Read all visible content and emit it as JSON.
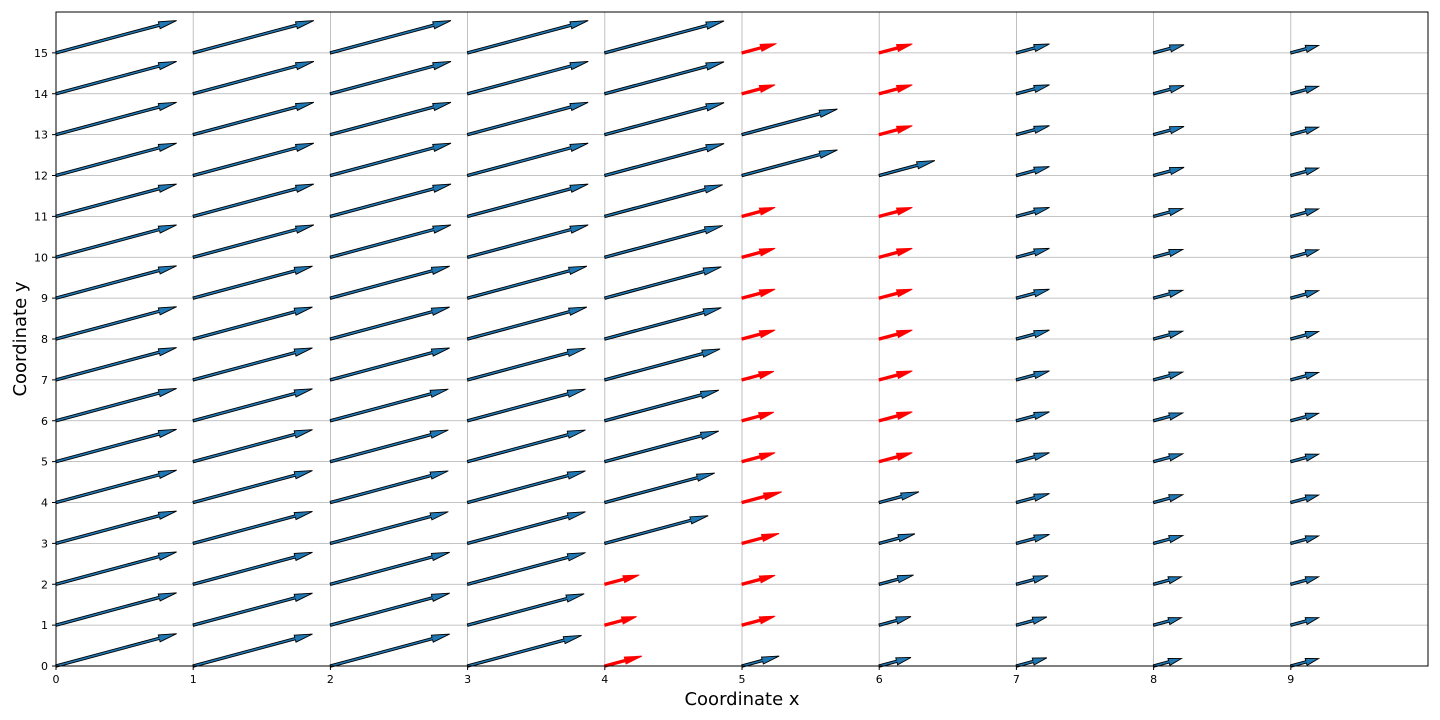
{
  "chart_data": {
    "type": "quiver",
    "title": "",
    "xlabel": "Coordinate x",
    "ylabel": "Coordinate y",
    "xlim": [
      0,
      10
    ],
    "ylim": [
      0,
      16
    ],
    "xticks": [
      0,
      1,
      2,
      3,
      4,
      5,
      6,
      7,
      8,
      9
    ],
    "yticks": [
      0,
      1,
      2,
      3,
      4,
      5,
      6,
      7,
      8,
      9,
      10,
      11,
      12,
      13,
      14,
      15
    ],
    "grid": true,
    "angle_deg": 15,
    "columns": [
      {
        "x": 0,
        "lengths": [
          0.91,
          0.91,
          0.91,
          0.91,
          0.91,
          0.91,
          0.91,
          0.91,
          0.91,
          0.91,
          0.91,
          0.91,
          0.91,
          0.91,
          0.91,
          0.91
        ],
        "colors": [
          "dark",
          "dark",
          "dark",
          "dark",
          "dark",
          "dark",
          "dark",
          "dark",
          "dark",
          "dark",
          "dark",
          "dark",
          "dark",
          "dark",
          "dark",
          "dark"
        ]
      },
      {
        "x": 1,
        "lengths": [
          0.9,
          0.9,
          0.9,
          0.9,
          0.9,
          0.9,
          0.9,
          0.9,
          0.9,
          0.9,
          0.91,
          0.91,
          0.91,
          0.91,
          0.91,
          0.91
        ],
        "colors": [
          "dark",
          "dark",
          "dark",
          "dark",
          "dark",
          "dark",
          "dark",
          "dark",
          "dark",
          "dark",
          "dark",
          "dark",
          "dark",
          "dark",
          "dark",
          "dark"
        ]
      },
      {
        "x": 2,
        "lengths": [
          0.9,
          0.9,
          0.9,
          0.89,
          0.89,
          0.89,
          0.89,
          0.9,
          0.9,
          0.9,
          0.91,
          0.91,
          0.91,
          0.91,
          0.91,
          0.91
        ],
        "colors": [
          "dark",
          "dark",
          "dark",
          "dark",
          "dark",
          "dark",
          "dark",
          "dark",
          "dark",
          "dark",
          "dark",
          "dark",
          "dark",
          "dark",
          "dark",
          "dark"
        ]
      },
      {
        "x": 3,
        "lengths": [
          0.86,
          0.88,
          0.89,
          0.89,
          0.89,
          0.89,
          0.89,
          0.89,
          0.9,
          0.9,
          0.91,
          0.91,
          0.91,
          0.91,
          0.91,
          0.91
        ],
        "colors": [
          "dark",
          "dark",
          "dark",
          "dark",
          "dark",
          "dark",
          "dark",
          "dark",
          "dark",
          "dark",
          "dark",
          "dark",
          "dark",
          "dark",
          "dark",
          "dark"
        ]
      },
      {
        "x": 4,
        "lengths": [
          0.28,
          0.24,
          0.26,
          0.78,
          0.83,
          0.86,
          0.86,
          0.87,
          0.88,
          0.88,
          0.89,
          0.89,
          0.9,
          0.9,
          0.9,
          0.9
        ],
        "colors": [
          "red",
          "red",
          "red",
          "dark",
          "dark",
          "dark",
          "dark",
          "dark",
          "dark",
          "dark",
          "dark",
          "dark",
          "dark",
          "dark",
          "dark",
          "dark"
        ]
      },
      {
        "x": 5,
        "lengths": [
          0.28,
          0.25,
          0.25,
          0.28,
          0.3,
          0.25,
          0.24,
          0.24,
          0.25,
          0.25,
          0.25,
          0.25,
          0.72,
          0.72,
          0.25,
          0.26
        ],
        "colors": [
          "dark",
          "red",
          "red",
          "red",
          "red",
          "red",
          "red",
          "red",
          "red",
          "red",
          "red",
          "red",
          "dark",
          "dark",
          "red",
          "red"
        ]
      },
      {
        "x": 6,
        "lengths": [
          0.24,
          0.24,
          0.26,
          0.27,
          0.3,
          0.25,
          0.25,
          0.25,
          0.25,
          0.25,
          0.25,
          0.25,
          0.42,
          0.25,
          0.25,
          0.25
        ],
        "colors": [
          "dark",
          "dark",
          "dark",
          "dark",
          "dark",
          "red",
          "red",
          "red",
          "red",
          "red",
          "red",
          "red",
          "dark",
          "red",
          "red",
          "red"
        ]
      },
      {
        "x": 7,
        "lengths": [
          0.23,
          0.23,
          0.24,
          0.25,
          0.25,
          0.25,
          0.25,
          0.25,
          0.25,
          0.25,
          0.25,
          0.25,
          0.25,
          0.25,
          0.25,
          0.25
        ],
        "colors": [
          "dark",
          "dark",
          "dark",
          "dark",
          "dark",
          "dark",
          "dark",
          "dark",
          "dark",
          "dark",
          "dark",
          "dark",
          "dark",
          "dark",
          "dark",
          "dark"
        ]
      },
      {
        "x": 8,
        "lengths": [
          0.21,
          0.21,
          0.21,
          0.22,
          0.22,
          0.22,
          0.22,
          0.22,
          0.22,
          0.22,
          0.22,
          0.22,
          0.23,
          0.23,
          0.23,
          0.23
        ],
        "colors": [
          "dark",
          "dark",
          "dark",
          "dark",
          "dark",
          "dark",
          "dark",
          "dark",
          "dark",
          "dark",
          "dark",
          "dark",
          "dark",
          "dark",
          "dark",
          "dark"
        ]
      },
      {
        "x": 9,
        "lengths": [
          0.21,
          0.21,
          0.21,
          0.21,
          0.21,
          0.21,
          0.21,
          0.21,
          0.21,
          0.21,
          0.21,
          0.21,
          0.21,
          0.21,
          0.21,
          0.21
        ],
        "colors": [
          "dark",
          "dark",
          "dark",
          "dark",
          "dark",
          "dark",
          "dark",
          "dark",
          "dark",
          "dark",
          "dark",
          "dark",
          "dark",
          "dark",
          "dark",
          "dark"
        ]
      }
    ],
    "palette": {
      "dark": {
        "fill": "#1f77b4",
        "edge": "#000000"
      },
      "red": {
        "fill": "#ff0000",
        "edge": "#ff0000"
      },
      "grid": "#b0b0b0",
      "frame": "#000000"
    }
  }
}
